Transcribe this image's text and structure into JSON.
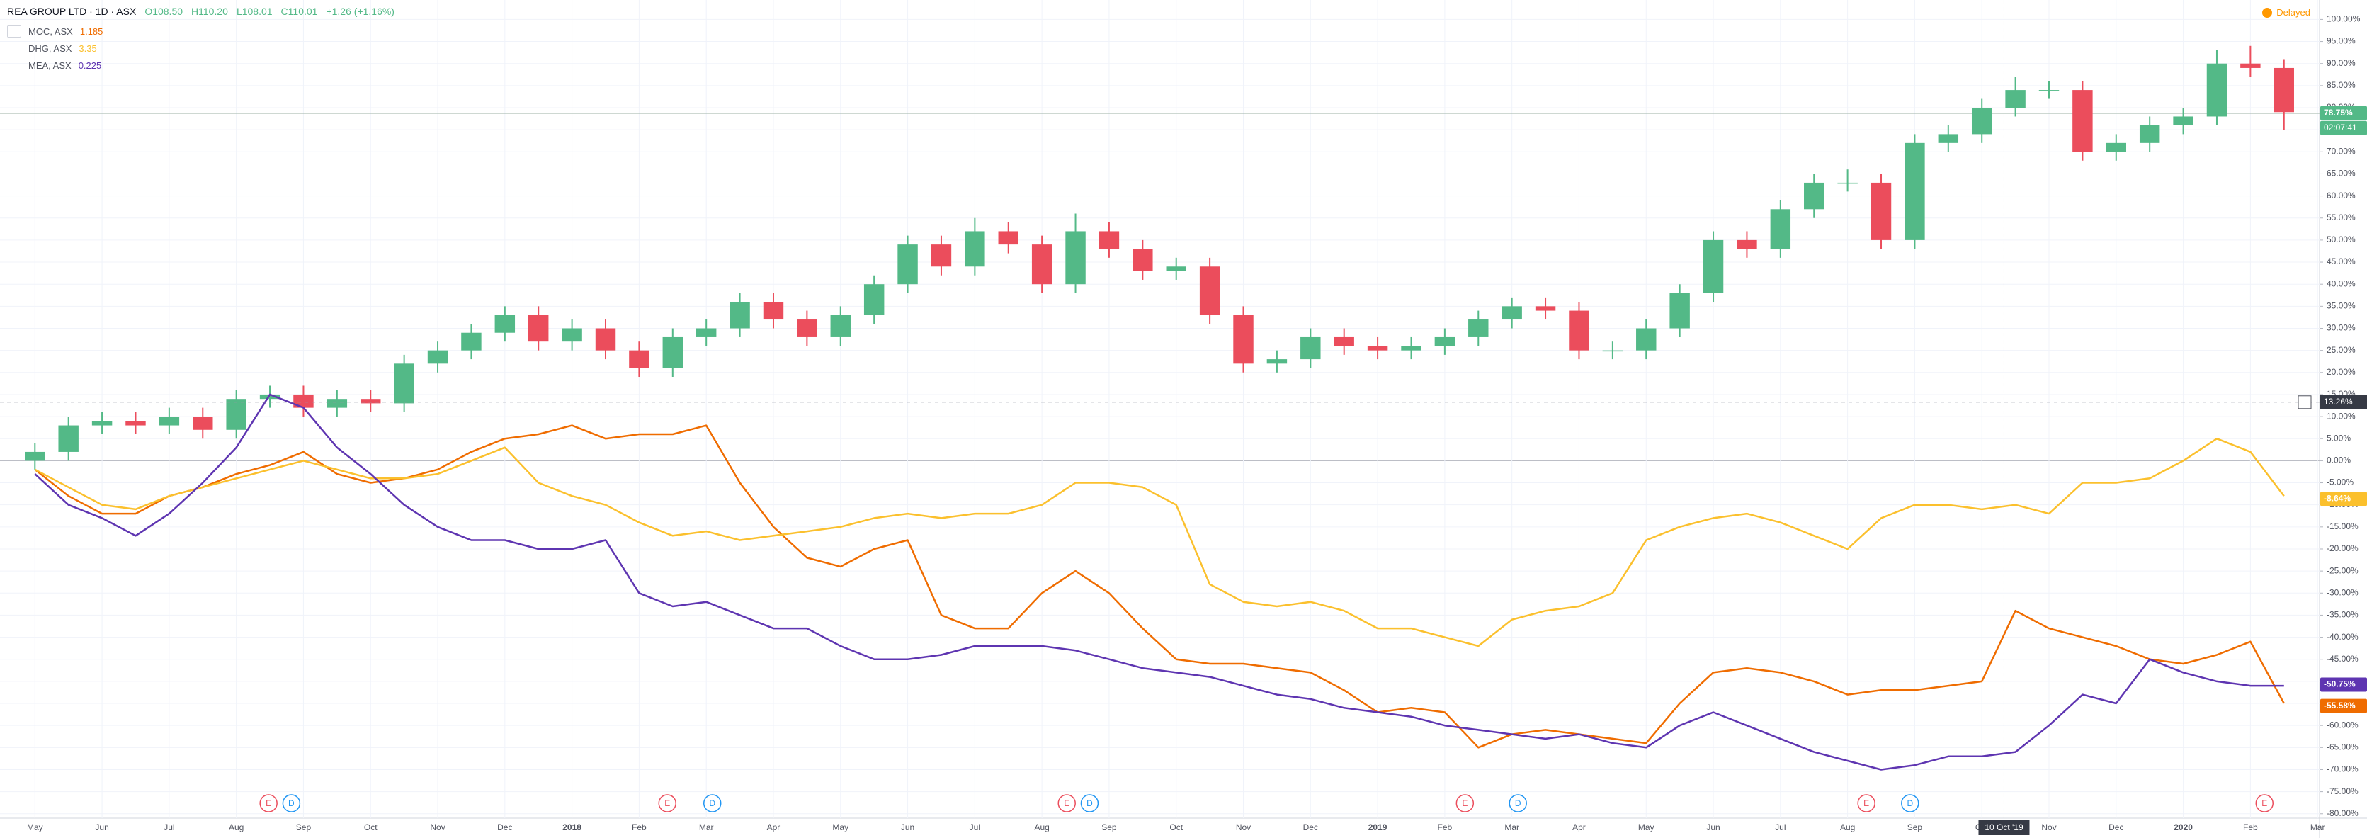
{
  "chart_data": {
    "type": "candlestick",
    "header": {
      "title": "REA GROUP LTD · 1D · ASX",
      "open": "O108.50",
      "high": "H110.20",
      "low": "L108.01",
      "close": "C110.01",
      "change": "+1.26 (+1.16%)"
    },
    "status": "Delayed",
    "x": [
      0,
      0.5,
      1,
      1.5,
      2,
      2.5,
      3,
      3.5,
      4,
      4.5,
      5,
      5.5,
      6,
      6.5,
      7,
      7.5,
      8,
      8.5,
      9,
      9.5,
      10,
      10.5,
      11,
      11.5,
      12,
      12.5,
      13,
      13.5,
      14,
      14.5,
      15,
      15.5,
      16,
      16.5,
      17,
      17.5,
      18,
      18.5,
      19,
      19.5,
      20,
      20.5,
      21,
      21.5,
      22,
      22.5,
      23,
      23.5,
      24,
      24.5,
      25,
      25.5,
      26,
      26.5,
      27,
      27.5,
      28,
      28.5,
      29,
      29.5,
      30,
      30.5,
      31,
      31.5,
      32,
      32.5,
      33,
      33.5
    ],
    "candles": {
      "up_color": "#53b987",
      "down_color": "#eb4d5c",
      "open": [
        0,
        2,
        8,
        9,
        8,
        10,
        7,
        14,
        15,
        12,
        14,
        13,
        22,
        25,
        29,
        33,
        27,
        30,
        25,
        21,
        28,
        30,
        36,
        32,
        28,
        33,
        40,
        49,
        44,
        52,
        49,
        40,
        52,
        48,
        43,
        44,
        33,
        22,
        23,
        28,
        26,
        25,
        26,
        28,
        32,
        35,
        34,
        25,
        25,
        30,
        38,
        50,
        48,
        57,
        63,
        63,
        50,
        72,
        74,
        80,
        84,
        84,
        70,
        72,
        76,
        78,
        90,
        89
      ],
      "high": [
        4,
        10,
        11,
        11,
        12,
        12,
        16,
        17,
        17,
        16,
        16,
        24,
        27,
        31,
        35,
        35,
        32,
        32,
        27,
        30,
        32,
        38,
        38,
        34,
        35,
        42,
        51,
        51,
        55,
        54,
        51,
        56,
        54,
        50,
        46,
        46,
        35,
        25,
        30,
        30,
        28,
        28,
        30,
        34,
        37,
        37,
        36,
        27,
        32,
        40,
        52,
        52,
        59,
        65,
        66,
        65,
        74,
        76,
        82,
        87,
        86,
        86,
        74,
        78,
        80,
        93,
        94,
        91
      ],
      "low": [
        -2,
        0,
        6,
        6,
        6,
        5,
        5,
        12,
        10,
        10,
        11,
        11,
        20,
        23,
        27,
        25,
        25,
        23,
        19,
        19,
        26,
        28,
        30,
        26,
        26,
        31,
        38,
        42,
        42,
        47,
        38,
        38,
        46,
        41,
        41,
        31,
        20,
        20,
        21,
        24,
        23,
        23,
        24,
        26,
        30,
        32,
        23,
        23,
        23,
        28,
        36,
        46,
        46,
        55,
        61,
        48,
        48,
        70,
        72,
        78,
        82,
        68,
        68,
        70,
        74,
        76,
        87,
        75
      ],
      "close": [
        2,
        8,
        9,
        8,
        10,
        7,
        14,
        15,
        12,
        14,
        13,
        22,
        25,
        29,
        33,
        27,
        30,
        25,
        21,
        28,
        30,
        36,
        32,
        28,
        33,
        40,
        49,
        44,
        52,
        49,
        40,
        52,
        48,
        43,
        44,
        33,
        22,
        23,
        28,
        26,
        25,
        26,
        28,
        32,
        35,
        34,
        25,
        25,
        30,
        38,
        50,
        48,
        57,
        63,
        63,
        50,
        72,
        74,
        80,
        84,
        84,
        70,
        72,
        76,
        78,
        90,
        89,
        79
      ]
    },
    "series": [
      {
        "name": "MOC, ASX",
        "price": "1.185",
        "color": "#ef6c00",
        "values": [
          -2,
          -8,
          -12,
          -12,
          -8,
          -6,
          -3,
          -1,
          2,
          -3,
          -5,
          -4,
          -2,
          2,
          5,
          6,
          8,
          5,
          6,
          6,
          8,
          -5,
          -15,
          -22,
          -24,
          -20,
          -18,
          -35,
          -38,
          -38,
          -30,
          -25,
          -30,
          -38,
          -45,
          -46,
          -46,
          -47,
          -48,
          -52,
          -57,
          -56,
          -57,
          -65,
          -62,
          -61,
          -62,
          -63,
          -64,
          -55,
          -48,
          -47,
          -48,
          -50,
          -53,
          -52,
          -52,
          -51,
          -50,
          -34,
          -38,
          -40,
          -42,
          -45,
          -46,
          -44,
          -41,
          -55
        ]
      },
      {
        "name": "DHG, ASX",
        "price": "3.35",
        "color": "#fbc02d",
        "values": [
          -2,
          -6,
          -10,
          -11,
          -8,
          -6,
          -4,
          -2,
          0,
          -2,
          -4,
          -4,
          -3,
          0,
          3,
          -5,
          -8,
          -10,
          -14,
          -17,
          -16,
          -18,
          -17,
          -16,
          -15,
          -13,
          -12,
          -13,
          -12,
          -12,
          -10,
          -5,
          -5,
          -6,
          -10,
          -28,
          -32,
          -33,
          -32,
          -34,
          -38,
          -38,
          -40,
          -42,
          -36,
          -34,
          -33,
          -30,
          -18,
          -15,
          -13,
          -12,
          -14,
          -17,
          -20,
          -13,
          -10,
          -10,
          -11,
          -10,
          -12,
          -5,
          -5,
          -4,
          0,
          5,
          2,
          -8
        ]
      },
      {
        "name": "MEA, ASX",
        "price": "0.225",
        "color": "#5e35b1",
        "values": [
          -3,
          -10,
          -13,
          -17,
          -12,
          -5,
          3,
          15,
          12,
          3,
          -3,
          -10,
          -15,
          -18,
          -18,
          -20,
          -20,
          -18,
          -30,
          -33,
          -32,
          -35,
          -38,
          -38,
          -42,
          -45,
          -45,
          -44,
          -42,
          -42,
          -42,
          -43,
          -45,
          -47,
          -48,
          -49,
          -51,
          -53,
          -54,
          -56,
          -57,
          -58,
          -60,
          -61,
          -62,
          -63,
          -62,
          -64,
          -65,
          -60,
          -57,
          -60,
          -63,
          -66,
          -68,
          -70,
          -69,
          -67,
          -67,
          -66,
          -60,
          -53,
          -55,
          -45,
          -48,
          -50,
          -51,
          -51
        ]
      }
    ],
    "xlim": [
      -0.52,
      34.03
    ],
    "xticks": [
      {
        "value": 0,
        "label": "May"
      },
      {
        "value": 1,
        "label": "Jun"
      },
      {
        "value": 2,
        "label": "Jul"
      },
      {
        "value": 3,
        "label": "Aug"
      },
      {
        "value": 4,
        "label": "Sep"
      },
      {
        "value": 5,
        "label": "Oct"
      },
      {
        "value": 6,
        "label": "Nov"
      },
      {
        "value": 7,
        "label": "Dec"
      },
      {
        "value": 8,
        "label": "2018"
      },
      {
        "value": 9,
        "label": "Feb"
      },
      {
        "value": 10,
        "label": "Mar"
      },
      {
        "value": 11,
        "label": "Apr"
      },
      {
        "value": 12,
        "label": "May"
      },
      {
        "value": 13,
        "label": "Jun"
      },
      {
        "value": 14,
        "label": "Jul"
      },
      {
        "value": 15,
        "label": "Aug"
      },
      {
        "value": 16,
        "label": "Sep"
      },
      {
        "value": 17,
        "label": "Oct"
      },
      {
        "value": 18,
        "label": "Nov"
      },
      {
        "value": 19,
        "label": "Dec"
      },
      {
        "value": 20,
        "label": "2019"
      },
      {
        "value": 21,
        "label": "Feb"
      },
      {
        "value": 22,
        "label": "Mar"
      },
      {
        "value": 23,
        "label": "Apr"
      },
      {
        "value": 24,
        "label": "May"
      },
      {
        "value": 25,
        "label": "Jun"
      },
      {
        "value": 26,
        "label": "Jul"
      },
      {
        "value": 27,
        "label": "Aug"
      },
      {
        "value": 28,
        "label": "Sep"
      },
      {
        "value": 29,
        "label": "Oct"
      },
      {
        "value": 30,
        "label": "Nov"
      },
      {
        "value": 31,
        "label": "Dec"
      },
      {
        "value": 32,
        "label": "2020"
      },
      {
        "value": 33,
        "label": "Feb"
      },
      {
        "value": 34,
        "label": "Mar"
      }
    ],
    "ylim": [
      -81,
      104.4
    ],
    "yticks": [
      {
        "value": 100,
        "label": "100.00%"
      },
      {
        "value": 95,
        "label": "95.00%"
      },
      {
        "value": 90,
        "label": "90.00%"
      },
      {
        "value": 85,
        "label": "85.00%"
      },
      {
        "value": 80,
        "label": "80.00%"
      },
      {
        "value": 75,
        "label": "75.00%"
      },
      {
        "value": 70,
        "label": "70.00%"
      },
      {
        "value": 65,
        "label": "65.00%"
      },
      {
        "value": 60,
        "label": "60.00%"
      },
      {
        "value": 55,
        "label": "55.00%"
      },
      {
        "value": 50,
        "label": "50.00%"
      },
      {
        "value": 45,
        "label": "45.00%"
      },
      {
        "value": 40,
        "label": "40.00%"
      },
      {
        "value": 35,
        "label": "35.00%"
      },
      {
        "value": 30,
        "label": "30.00%"
      },
      {
        "value": 25,
        "label": "25.00%"
      },
      {
        "value": 20,
        "label": "20.00%"
      },
      {
        "value": 15,
        "label": "15.00%"
      },
      {
        "value": 10,
        "label": "10.00%"
      },
      {
        "value": 5,
        "label": "5.00%"
      },
      {
        "value": 0,
        "label": "0.00%"
      },
      {
        "value": -5,
        "label": "-5.00%"
      },
      {
        "value": -10,
        "label": "-10.00%"
      },
      {
        "value": -15,
        "label": "-15.00%"
      },
      {
        "value": -20,
        "label": "-20.00%"
      },
      {
        "value": -25,
        "label": "-25.00%"
      },
      {
        "value": -30,
        "label": "-30.00%"
      },
      {
        "value": -35,
        "label": "-35.00%"
      },
      {
        "value": -40,
        "label": "-40.00%"
      },
      {
        "value": -45,
        "label": "-45.00%"
      },
      {
        "value": -50,
        "label": "-50.00%"
      },
      {
        "value": -55,
        "label": "-55.00%"
      },
      {
        "value": -60,
        "label": "-60.00%"
      },
      {
        "value": -65,
        "label": "-65.00%"
      },
      {
        "value": -70,
        "label": "-70.00%"
      },
      {
        "value": -75,
        "label": "-75.00%"
      },
      {
        "value": -80,
        "label": "-80.00%"
      }
    ],
    "price_labels": [
      {
        "value": 78.75,
        "label": "78.75%",
        "color": "#53b987"
      },
      {
        "value": -8.64,
        "label": "-8.64%",
        "color": "#fbc02d"
      },
      {
        "value": -50.75,
        "label": "-50.75%",
        "color": "#5e35b1"
      },
      {
        "value": -55.58,
        "label": "-55.58%",
        "color": "#ef6c00"
      }
    ],
    "countdown": "02:07:41",
    "crosshair": {
      "x": 29.33,
      "x_label": "10 Oct '19",
      "y": 13.26,
      "y_label": "13.26%"
    },
    "events": [
      {
        "x": 3.48,
        "label": "E"
      },
      {
        "x": 3.82,
        "label": "D"
      },
      {
        "x": 9.42,
        "label": "E"
      },
      {
        "x": 10.09,
        "label": "D"
      },
      {
        "x": 15.37,
        "label": "E"
      },
      {
        "x": 15.71,
        "label": "D"
      },
      {
        "x": 21.3,
        "label": "E"
      },
      {
        "x": 22.09,
        "label": "D"
      },
      {
        "x": 27.28,
        "label": "E"
      },
      {
        "x": 27.93,
        "label": "D"
      },
      {
        "x": 33.21,
        "label": "E"
      }
    ],
    "grid": true
  }
}
